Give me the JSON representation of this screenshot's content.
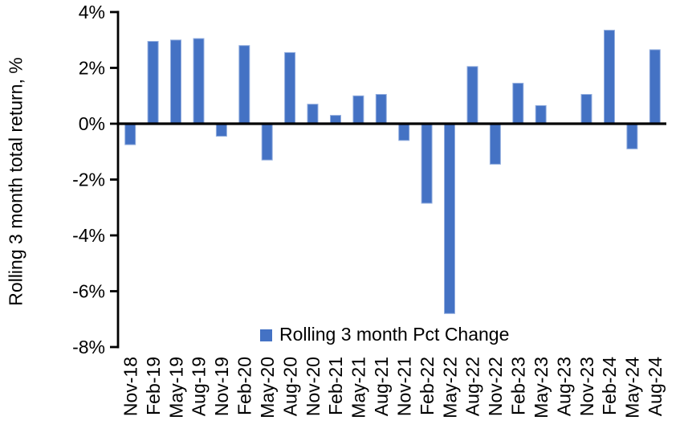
{
  "chart_data": {
    "type": "bar",
    "categories": [
      "Nov-18",
      "Feb-19",
      "May-19",
      "Aug-19",
      "Nov-19",
      "Feb-20",
      "May-20",
      "Aug-20",
      "Nov-20",
      "Feb-21",
      "May-21",
      "Aug-21",
      "Nov-21",
      "Feb-22",
      "May-22",
      "Aug-22",
      "Nov-22",
      "Feb-23",
      "May-23",
      "Aug-23",
      "Nov-23",
      "Feb-24",
      "May-24",
      "Aug-24"
    ],
    "values": [
      -0.75,
      2.95,
      3.0,
      3.05,
      -0.45,
      2.8,
      -1.3,
      2.55,
      0.7,
      0.3,
      1.0,
      1.05,
      -0.6,
      -2.85,
      -6.8,
      2.05,
      -1.45,
      1.45,
      0.65,
      0.0,
      1.05,
      3.35,
      -0.9,
      2.65
    ],
    "title": "",
    "xlabel": "",
    "ylabel": "Rolling 3 month total return, %",
    "legend_label": "Rolling 3 month Pct Change",
    "legend_position": "bottom-center",
    "ylim": [
      -8,
      4
    ],
    "ytick_step": 2,
    "ytick_labels": [
      "4%",
      "2%",
      "0%",
      "-2%",
      "-4%",
      "-6%",
      "-8%"
    ],
    "grid": false,
    "bar_color": "#4472C4",
    "bar_border_color": "#94AFDF",
    "axis_color": "#000000"
  }
}
